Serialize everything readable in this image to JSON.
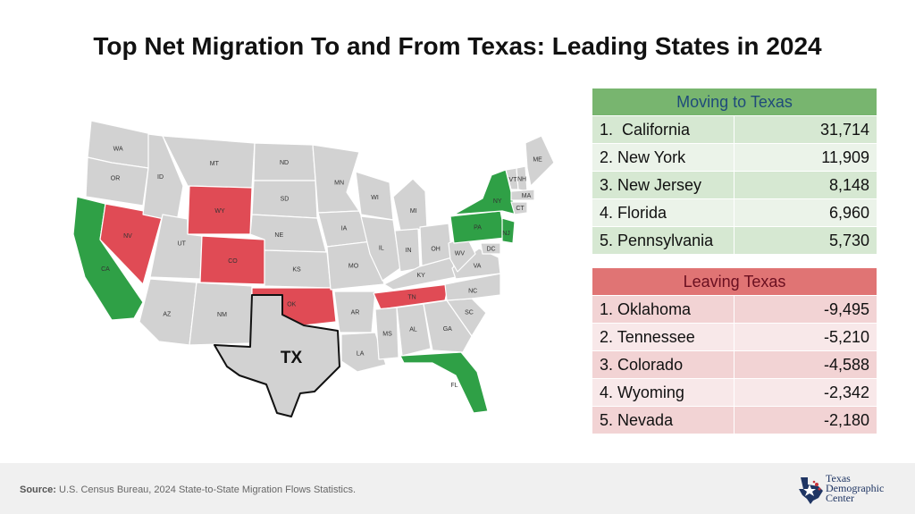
{
  "title": "Top Net Migration To and From Texas: Leading States in 2024",
  "colors": {
    "gain": "#2fa046",
    "loss": "#e04b55",
    "neutral": "#d2d2d2",
    "texas_outline": "#111111"
  },
  "map": {
    "state_labels": [
      "WA",
      "OR",
      "CA",
      "NV",
      "ID",
      "MT",
      "WY",
      "UT",
      "CO",
      "AZ",
      "NM",
      "ND",
      "SD",
      "NE",
      "KS",
      "OK",
      "MN",
      "IA",
      "MO",
      "AR",
      "LA",
      "WI",
      "IL",
      "MI",
      "IN",
      "OH",
      "KY",
      "TN",
      "MS",
      "AL",
      "GA",
      "FL",
      "SC",
      "NC",
      "VA",
      "WV",
      "PA",
      "NY",
      "VT",
      "NH",
      "ME",
      "MA",
      "CT",
      "NJ",
      "DC"
    ],
    "texas_label": "TX",
    "moving_to_texas_states": [
      "CA",
      "NY",
      "NJ",
      "FL",
      "PA"
    ],
    "leaving_texas_states": [
      "OK",
      "TN",
      "CO",
      "WY",
      "NV"
    ]
  },
  "moving_to": {
    "header": "Moving to Texas",
    "rows": [
      {
        "rank": "1.",
        "state": "California",
        "value": "31,714"
      },
      {
        "rank": "2.",
        "state": "New York",
        "value": "11,909"
      },
      {
        "rank": "3.",
        "state": "New Jersey",
        "value": "8,148"
      },
      {
        "rank": "4.",
        "state": "Florida",
        "value": "6,960"
      },
      {
        "rank": "5.",
        "state": "Pennsylvania",
        "value": "5,730"
      }
    ]
  },
  "leaving": {
    "header": "Leaving Texas",
    "rows": [
      {
        "rank": "1.",
        "state": "Oklahoma",
        "value": "-9,495"
      },
      {
        "rank": "2.",
        "state": "Tennessee",
        "value": "-5,210"
      },
      {
        "rank": "3.",
        "state": "Colorado",
        "value": "-4,588"
      },
      {
        "rank": "4.",
        "state": "Wyoming",
        "value": "-2,342"
      },
      {
        "rank": "5.",
        "state": "Nevada",
        "value": "-2,180"
      }
    ]
  },
  "footer": {
    "source_label": "Source:",
    "source_text": "U.S. Census Bureau, 2024 State-to-State Migration Flows Statistics.",
    "logo_line1": "Texas",
    "logo_line2": "Demographic",
    "logo_line3": "Center"
  }
}
